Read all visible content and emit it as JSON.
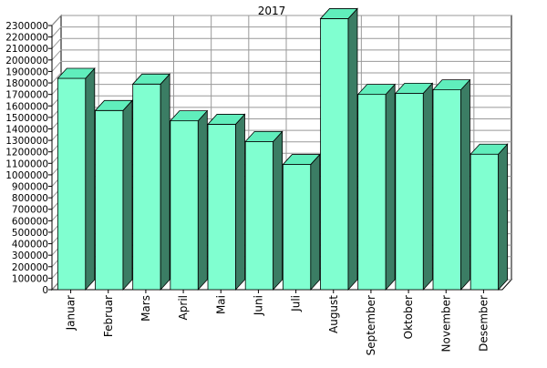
{
  "chart_data": {
    "type": "bar",
    "title": "2017",
    "xlabel": "",
    "ylabel": "",
    "categories": [
      "Januar",
      "Februar",
      "Mars",
      "April",
      "Mai",
      "Juni",
      "Juli",
      "August",
      "September",
      "Oktober",
      "November",
      "Desember"
    ],
    "values": [
      1840000,
      1560000,
      1790000,
      1470000,
      1440000,
      1290000,
      1090000,
      2360000,
      1700000,
      1710000,
      1740000,
      1180000
    ],
    "ylim": [
      0,
      2300000
    ],
    "yticks": [
      0,
      100000,
      200000,
      300000,
      400000,
      500000,
      600000,
      700000,
      800000,
      900000,
      1000000,
      1100000,
      1200000,
      1300000,
      1400000,
      1500000,
      1600000,
      1700000,
      1800000,
      1900000,
      2000000,
      2100000,
      2200000,
      2300000
    ],
    "ytick_labels": [
      "0",
      "100000",
      "200000",
      "300000",
      "400000",
      "500000",
      "600000",
      "700000",
      "800000",
      "900000",
      "1000000",
      "1100000",
      "1200000",
      "1300000",
      "1400000",
      "1500000",
      "1600000",
      "1700000",
      "1800000",
      "1900000",
      "2000000",
      "2100000",
      "2200000",
      "2300000"
    ],
    "grid": true,
    "legend": "none",
    "style": "3d-bar",
    "colors": {
      "bar_front": "#80ffd0",
      "bar_top": "#60eebc",
      "bar_side": "#3b7d64",
      "grid": "#999999",
      "wall": "#ffffff",
      "axis": "#000000"
    }
  }
}
